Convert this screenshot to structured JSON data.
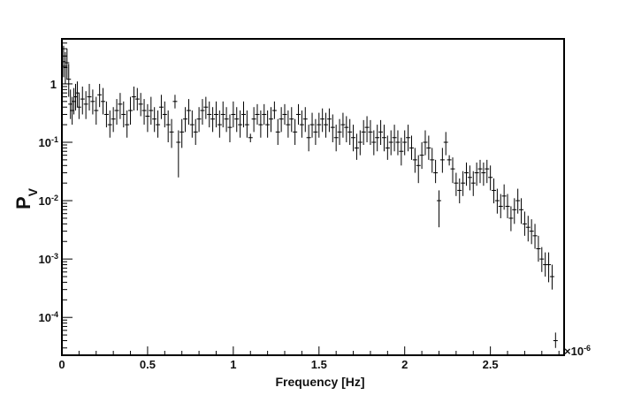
{
  "chart_data": {
    "type": "scatter",
    "title": "",
    "xlabel": "Frequency [Hz]",
    "ylabel_main": "P",
    "ylabel_sub": "V",
    "x_multiplier": "×10",
    "x_multiplier_exponent": "-6",
    "xlim": [
      0,
      2.93
    ],
    "ylim": [
      2.25e-05,
      5.9
    ],
    "yscale": "log",
    "grid": false,
    "legend": "none",
    "x_ticks": [
      {
        "value": 0,
        "label": "0"
      },
      {
        "value": 0.5,
        "label": "0.5"
      },
      {
        "value": 1,
        "label": "1"
      },
      {
        "value": 1.5,
        "label": "1.5"
      },
      {
        "value": 2,
        "label": "2"
      },
      {
        "value": 2.5,
        "label": "2.5"
      }
    ],
    "y_ticks": [
      {
        "value": 1,
        "base": "1",
        "exp": ""
      },
      {
        "value": 0.1,
        "base": "10",
        "exp": "-1"
      },
      {
        "value": 0.01,
        "base": "10",
        "exp": "-2"
      },
      {
        "value": 0.001,
        "base": "10",
        "exp": "-3"
      },
      {
        "value": 0.0001,
        "base": "10",
        "exp": "-4"
      }
    ],
    "series": [
      {
        "color": "#000000",
        "points": [
          [
            0.01,
            2.4,
            1.3,
            4.5
          ],
          [
            0.02,
            1.9,
            1.0,
            3.5
          ],
          [
            0.03,
            2.3,
            1.2,
            4.0
          ],
          [
            0.04,
            1.2,
            0.6,
            2.2
          ],
          [
            0.05,
            0.45,
            0.25,
            0.8
          ],
          [
            0.06,
            0.35,
            0.2,
            0.6
          ],
          [
            0.07,
            0.5,
            0.3,
            0.85
          ],
          [
            0.08,
            0.6,
            0.35,
            1.0
          ],
          [
            0.09,
            0.7,
            0.4,
            1.1
          ],
          [
            0.1,
            0.4,
            0.25,
            0.7
          ],
          [
            0.12,
            0.55,
            0.3,
            0.9
          ],
          [
            0.14,
            0.45,
            0.25,
            0.75
          ],
          [
            0.16,
            0.6,
            0.35,
            1.0
          ],
          [
            0.18,
            0.5,
            0.3,
            0.8
          ],
          [
            0.2,
            0.35,
            0.2,
            0.6
          ],
          [
            0.22,
            0.65,
            0.4,
            1.0
          ],
          [
            0.24,
            0.5,
            0.3,
            0.85
          ],
          [
            0.26,
            0.3,
            0.18,
            0.5
          ],
          [
            0.28,
            0.2,
            0.12,
            0.35
          ],
          [
            0.3,
            0.25,
            0.15,
            0.4
          ],
          [
            0.32,
            0.35,
            0.2,
            0.55
          ],
          [
            0.34,
            0.45,
            0.25,
            0.7
          ],
          [
            0.36,
            0.3,
            0.18,
            0.5
          ],
          [
            0.38,
            0.2,
            0.12,
            0.35
          ],
          [
            0.4,
            0.35,
            0.2,
            0.6
          ],
          [
            0.42,
            0.6,
            0.35,
            0.9
          ],
          [
            0.44,
            0.55,
            0.35,
            0.85
          ],
          [
            0.46,
            0.45,
            0.28,
            0.7
          ],
          [
            0.48,
            0.35,
            0.2,
            0.55
          ],
          [
            0.5,
            0.28,
            0.15,
            0.45
          ],
          [
            0.52,
            0.35,
            0.2,
            0.6
          ],
          [
            0.54,
            0.25,
            0.15,
            0.4
          ],
          [
            0.56,
            0.2,
            0.12,
            0.35
          ],
          [
            0.58,
            0.4,
            0.25,
            0.65
          ],
          [
            0.6,
            0.3,
            0.18,
            0.5
          ],
          [
            0.62,
            0.2,
            0.1,
            0.35
          ],
          [
            0.64,
            0.15,
            0.08,
            0.25
          ],
          [
            0.66,
            0.5,
            0.38,
            0.65
          ],
          [
            0.68,
            0.1,
            0.025,
            0.16
          ],
          [
            0.7,
            0.15,
            0.08,
            0.25
          ],
          [
            0.72,
            0.25,
            0.15,
            0.4
          ],
          [
            0.74,
            0.35,
            0.2,
            0.55
          ],
          [
            0.76,
            0.2,
            0.12,
            0.35
          ],
          [
            0.78,
            0.15,
            0.09,
            0.25
          ],
          [
            0.8,
            0.25,
            0.15,
            0.4
          ],
          [
            0.82,
            0.35,
            0.2,
            0.55
          ],
          [
            0.84,
            0.4,
            0.25,
            0.6
          ],
          [
            0.86,
            0.3,
            0.18,
            0.5
          ],
          [
            0.88,
            0.25,
            0.15,
            0.4
          ],
          [
            0.9,
            0.3,
            0.18,
            0.5
          ],
          [
            0.92,
            0.2,
            0.12,
            0.35
          ],
          [
            0.94,
            0.3,
            0.18,
            0.5
          ],
          [
            0.96,
            0.25,
            0.15,
            0.4
          ],
          [
            0.98,
            0.18,
            0.1,
            0.3
          ],
          [
            1.0,
            0.3,
            0.18,
            0.5
          ],
          [
            1.02,
            0.25,
            0.15,
            0.4
          ],
          [
            1.04,
            0.2,
            0.12,
            0.35
          ],
          [
            1.06,
            0.3,
            0.18,
            0.5
          ],
          [
            1.08,
            0.2,
            0.12,
            0.35
          ],
          [
            1.1,
            0.12,
            0.1,
            0.14
          ],
          [
            1.12,
            0.25,
            0.15,
            0.4
          ],
          [
            1.14,
            0.3,
            0.2,
            0.45
          ],
          [
            1.16,
            0.2,
            0.12,
            0.35
          ],
          [
            1.18,
            0.3,
            0.2,
            0.45
          ],
          [
            1.2,
            0.2,
            0.12,
            0.35
          ],
          [
            1.22,
            0.25,
            0.15,
            0.4
          ],
          [
            1.24,
            0.35,
            0.25,
            0.5
          ],
          [
            1.26,
            0.15,
            0.09,
            0.25
          ],
          [
            1.28,
            0.25,
            0.15,
            0.4
          ],
          [
            1.3,
            0.3,
            0.2,
            0.45
          ],
          [
            1.32,
            0.2,
            0.12,
            0.35
          ],
          [
            1.34,
            0.25,
            0.15,
            0.4
          ],
          [
            1.36,
            0.15,
            0.09,
            0.25
          ],
          [
            1.38,
            0.3,
            0.2,
            0.45
          ],
          [
            1.4,
            0.2,
            0.12,
            0.35
          ],
          [
            1.42,
            0.25,
            0.15,
            0.4
          ],
          [
            1.44,
            0.12,
            0.07,
            0.2
          ],
          [
            1.46,
            0.2,
            0.12,
            0.32
          ],
          [
            1.48,
            0.15,
            0.09,
            0.25
          ],
          [
            1.5,
            0.2,
            0.12,
            0.32
          ],
          [
            1.52,
            0.25,
            0.15,
            0.38
          ],
          [
            1.54,
            0.2,
            0.12,
            0.32
          ],
          [
            1.56,
            0.25,
            0.15,
            0.38
          ],
          [
            1.58,
            0.18,
            0.1,
            0.3
          ],
          [
            1.6,
            0.12,
            0.07,
            0.2
          ],
          [
            1.62,
            0.15,
            0.09,
            0.25
          ],
          [
            1.64,
            0.2,
            0.12,
            0.32
          ],
          [
            1.66,
            0.18,
            0.1,
            0.28
          ],
          [
            1.68,
            0.15,
            0.09,
            0.25
          ],
          [
            1.7,
            0.12,
            0.07,
            0.2
          ],
          [
            1.72,
            0.08,
            0.05,
            0.14
          ],
          [
            1.74,
            0.1,
            0.06,
            0.16
          ],
          [
            1.76,
            0.15,
            0.09,
            0.24
          ],
          [
            1.78,
            0.18,
            0.1,
            0.28
          ],
          [
            1.8,
            0.15,
            0.09,
            0.24
          ],
          [
            1.82,
            0.1,
            0.06,
            0.16
          ],
          [
            1.84,
            0.12,
            0.07,
            0.2
          ],
          [
            1.86,
            0.15,
            0.09,
            0.24
          ],
          [
            1.88,
            0.12,
            0.07,
            0.2
          ],
          [
            1.9,
            0.08,
            0.05,
            0.13
          ],
          [
            1.92,
            0.1,
            0.06,
            0.16
          ],
          [
            1.94,
            0.12,
            0.07,
            0.2
          ],
          [
            1.96,
            0.1,
            0.06,
            0.16
          ],
          [
            1.98,
            0.07,
            0.04,
            0.12
          ],
          [
            2.0,
            0.1,
            0.06,
            0.16
          ],
          [
            2.02,
            0.12,
            0.07,
            0.2
          ],
          [
            2.04,
            0.08,
            0.05,
            0.13
          ],
          [
            2.06,
            0.05,
            0.03,
            0.08
          ],
          [
            2.08,
            0.04,
            0.02,
            0.06
          ],
          [
            2.1,
            0.06,
            0.035,
            0.1
          ],
          [
            2.12,
            0.1,
            0.06,
            0.16
          ],
          [
            2.14,
            0.08,
            0.05,
            0.13
          ],
          [
            2.16,
            0.05,
            0.03,
            0.08
          ],
          [
            2.18,
            0.03,
            0.02,
            0.05
          ],
          [
            2.2,
            0.01,
            0.0035,
            0.015
          ],
          [
            2.22,
            0.05,
            0.03,
            0.08
          ],
          [
            2.24,
            0.1,
            0.06,
            0.15
          ],
          [
            2.26,
            0.05,
            0.04,
            0.06
          ],
          [
            2.28,
            0.035,
            0.02,
            0.055
          ],
          [
            2.3,
            0.02,
            0.012,
            0.03
          ],
          [
            2.32,
            0.015,
            0.009,
            0.024
          ],
          [
            2.34,
            0.02,
            0.012,
            0.032
          ],
          [
            2.36,
            0.03,
            0.018,
            0.045
          ],
          [
            2.38,
            0.025,
            0.015,
            0.04
          ],
          [
            2.4,
            0.02,
            0.012,
            0.032
          ],
          [
            2.42,
            0.03,
            0.018,
            0.045
          ],
          [
            2.44,
            0.035,
            0.02,
            0.05
          ],
          [
            2.46,
            0.03,
            0.018,
            0.045
          ],
          [
            2.48,
            0.035,
            0.02,
            0.05
          ],
          [
            2.5,
            0.025,
            0.015,
            0.04
          ],
          [
            2.52,
            0.015,
            0.009,
            0.024
          ],
          [
            2.54,
            0.01,
            0.006,
            0.016
          ],
          [
            2.56,
            0.008,
            0.005,
            0.013
          ],
          [
            2.58,
            0.012,
            0.007,
            0.019
          ],
          [
            2.6,
            0.008,
            0.005,
            0.013
          ],
          [
            2.62,
            0.005,
            0.003,
            0.008
          ],
          [
            2.64,
            0.007,
            0.004,
            0.011
          ],
          [
            2.66,
            0.01,
            0.006,
            0.016
          ],
          [
            2.68,
            0.007,
            0.004,
            0.011
          ],
          [
            2.7,
            0.004,
            0.0025,
            0.0065
          ],
          [
            2.72,
            0.0035,
            0.002,
            0.0055
          ],
          [
            2.74,
            0.003,
            0.0018,
            0.0048
          ],
          [
            2.76,
            0.0025,
            0.0015,
            0.004
          ],
          [
            2.78,
            0.0015,
            0.0009,
            0.0025
          ],
          [
            2.8,
            0.001,
            0.0006,
            0.0016
          ],
          [
            2.82,
            0.0008,
            0.0005,
            0.0013
          ],
          [
            2.84,
            0.0008,
            0.0004,
            0.0013
          ],
          [
            2.86,
            0.0005,
            0.0003,
            0.0008
          ],
          [
            2.88,
            4e-05,
            3e-05,
            5.5e-05
          ]
        ]
      }
    ]
  }
}
